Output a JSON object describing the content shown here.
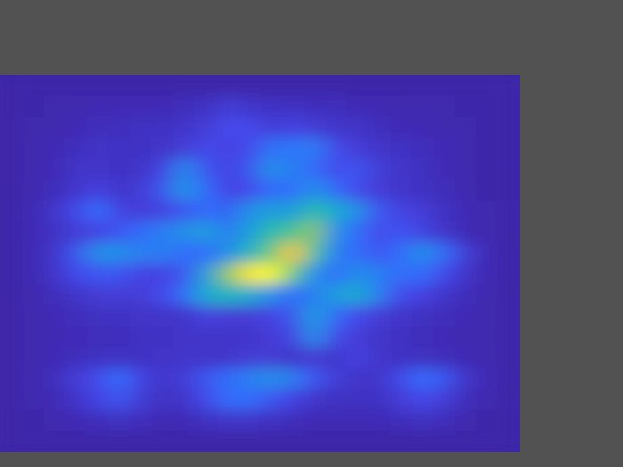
{
  "chart_data": {
    "type": "heatmap",
    "tick_labels": false,
    "values": [
      [
        0.01,
        0.01,
        0.01,
        0.01,
        0.01,
        0.01,
        0.01,
        0.01,
        0.01,
        0.01,
        0.01,
        0.01,
        0.01,
        0.01,
        0.01,
        0.01,
        0.01,
        0.01,
        0.01,
        0.01,
        0.01,
        0.01,
        0.01,
        0.01
      ],
      [
        0.01,
        0.01,
        0.02,
        0.02,
        0.03,
        0.03,
        0.03,
        0.03,
        0.04,
        0.05,
        0.08,
        0.06,
        0.05,
        0.05,
        0.04,
        0.04,
        0.03,
        0.03,
        0.02,
        0.02,
        0.02,
        0.01,
        0.01,
        0.01
      ],
      [
        0.01,
        0.02,
        0.02,
        0.03,
        0.04,
        0.04,
        0.05,
        0.05,
        0.06,
        0.08,
        0.12,
        0.12,
        0.08,
        0.1,
        0.08,
        0.06,
        0.06,
        0.04,
        0.03,
        0.03,
        0.02,
        0.02,
        0.01,
        0.01
      ],
      [
        0.01,
        0.02,
        0.03,
        0.04,
        0.06,
        0.05,
        0.05,
        0.06,
        0.08,
        0.12,
        0.1,
        0.12,
        0.22,
        0.22,
        0.25,
        0.12,
        0.08,
        0.06,
        0.05,
        0.04,
        0.03,
        0.02,
        0.01,
        0.01
      ],
      [
        0.01,
        0.02,
        0.03,
        0.06,
        0.06,
        0.05,
        0.06,
        0.1,
        0.28,
        0.15,
        0.1,
        0.15,
        0.3,
        0.25,
        0.2,
        0.12,
        0.15,
        0.08,
        0.06,
        0.05,
        0.03,
        0.02,
        0.01,
        0.01
      ],
      [
        0.01,
        0.02,
        0.04,
        0.06,
        0.1,
        0.06,
        0.08,
        0.15,
        0.32,
        0.2,
        0.1,
        0.12,
        0.2,
        0.2,
        0.3,
        0.2,
        0.12,
        0.08,
        0.06,
        0.05,
        0.04,
        0.02,
        0.01,
        0.01
      ],
      [
        0.01,
        0.03,
        0.06,
        0.12,
        0.2,
        0.1,
        0.08,
        0.1,
        0.15,
        0.2,
        0.18,
        0.3,
        0.35,
        0.35,
        0.5,
        0.4,
        0.3,
        0.15,
        0.1,
        0.08,
        0.05,
        0.03,
        0.02,
        0.01
      ],
      [
        0.01,
        0.03,
        0.05,
        0.08,
        0.1,
        0.15,
        0.2,
        0.25,
        0.3,
        0.35,
        0.25,
        0.35,
        0.5,
        0.55,
        0.65,
        0.3,
        0.2,
        0.12,
        0.15,
        0.1,
        0.06,
        0.03,
        0.02,
        0.01
      ],
      [
        0.01,
        0.03,
        0.06,
        0.15,
        0.3,
        0.3,
        0.25,
        0.25,
        0.2,
        0.2,
        0.3,
        0.45,
        0.6,
        0.85,
        0.55,
        0.25,
        0.2,
        0.15,
        0.2,
        0.3,
        0.2,
        0.08,
        0.03,
        0.01
      ],
      [
        0.01,
        0.03,
        0.06,
        0.12,
        0.15,
        0.15,
        0.1,
        0.1,
        0.15,
        0.35,
        0.65,
        0.95,
        1,
        0.6,
        0.3,
        0.2,
        0.3,
        0.25,
        0.2,
        0.2,
        0.12,
        0.06,
        0.03,
        0.01
      ],
      [
        0.01,
        0.02,
        0.04,
        0.06,
        0.08,
        0.08,
        0.08,
        0.12,
        0.2,
        0.4,
        0.45,
        0.4,
        0.3,
        0.2,
        0.25,
        0.35,
        0.4,
        0.25,
        0.12,
        0.1,
        0.06,
        0.04,
        0.02,
        0.01
      ],
      [
        0.01,
        0.02,
        0.03,
        0.04,
        0.05,
        0.05,
        0.06,
        0.06,
        0.06,
        0.1,
        0.08,
        0.08,
        0.1,
        0.15,
        0.35,
        0.2,
        0.12,
        0.08,
        0.06,
        0.05,
        0.04,
        0.03,
        0.02,
        0.01
      ],
      [
        0.01,
        0.02,
        0.03,
        0.03,
        0.04,
        0.04,
        0.05,
        0.05,
        0.06,
        0.06,
        0.06,
        0.06,
        0.08,
        0.1,
        0.3,
        0.12,
        0.08,
        0.06,
        0.05,
        0.04,
        0.03,
        0.02,
        0.02,
        0.01
      ],
      [
        0.01,
        0.02,
        0.03,
        0.04,
        0.05,
        0.05,
        0.05,
        0.06,
        0.06,
        0.06,
        0.06,
        0.08,
        0.08,
        0.06,
        0.08,
        0.06,
        0.1,
        0.06,
        0.05,
        0.05,
        0.04,
        0.03,
        0.02,
        0.01
      ],
      [
        0.01,
        0.02,
        0.04,
        0.08,
        0.12,
        0.2,
        0.1,
        0.06,
        0.08,
        0.15,
        0.2,
        0.25,
        0.3,
        0.25,
        0.15,
        0.08,
        0.06,
        0.06,
        0.12,
        0.2,
        0.15,
        0.06,
        0.03,
        0.01
      ],
      [
        0.01,
        0.02,
        0.03,
        0.06,
        0.1,
        0.15,
        0.08,
        0.05,
        0.06,
        0.12,
        0.2,
        0.2,
        0.15,
        0.1,
        0.06,
        0.05,
        0.05,
        0.05,
        0.08,
        0.12,
        0.08,
        0.04,
        0.02,
        0.01
      ],
      [
        0.01,
        0.01,
        0.02,
        0.03,
        0.04,
        0.05,
        0.04,
        0.03,
        0.03,
        0.05,
        0.06,
        0.06,
        0.05,
        0.04,
        0.03,
        0.03,
        0.03,
        0.03,
        0.04,
        0.05,
        0.04,
        0.02,
        0.01,
        0.01
      ],
      [
        0.01,
        0.01,
        0.01,
        0.01,
        0.01,
        0.01,
        0.01,
        0.01,
        0.01,
        0.01,
        0.01,
        0.01,
        0.01,
        0.01,
        0.01,
        0.01,
        0.01,
        0.01,
        0.01,
        0.01,
        0.01,
        0.01,
        0.01,
        0.01
      ]
    ]
  }
}
